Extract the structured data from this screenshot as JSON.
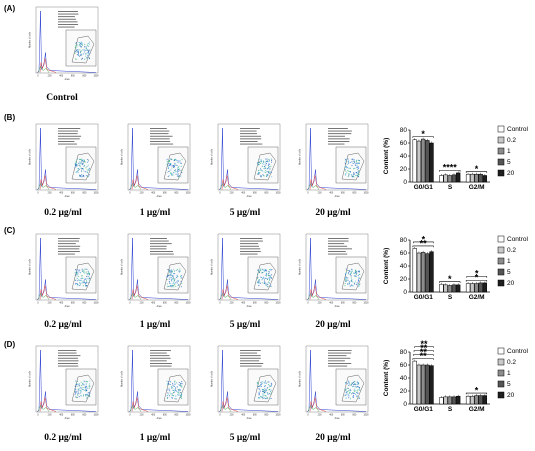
{
  "panels": [
    {
      "label": "(A)",
      "captions": [
        "Control"
      ]
    },
    {
      "label": "(B)",
      "captions": [
        "0.2 μg/ml",
        "1 μg/ml",
        "5 μg/ml",
        "20 μg/ml"
      ]
    },
    {
      "label": "(C)",
      "captions": [
        "0.2 μg/ml",
        "1 μg/ml",
        "5 μg/ml",
        "20 μg/ml"
      ]
    },
    {
      "label": "(D)",
      "captions": [
        "0.2 μg/ml",
        "1 μg/ml",
        "5 μg/ml",
        "20 μg/ml"
      ]
    }
  ],
  "flow_axes": {
    "x_label": "Area",
    "y_label": "Number of cells",
    "x_ticks": [
      "0",
      "200",
      "400",
      "600",
      "800",
      "1000"
    ]
  },
  "legend": [
    "Control",
    "0.2",
    "1",
    "5",
    "20"
  ],
  "bar_colors": [
    "#ffffff",
    "#c8c8c8",
    "#8c8c8c",
    "#555555",
    "#1e1e1e"
  ],
  "chart_data": [
    {
      "type": "bar",
      "ylabel": "Content (%)",
      "ylim": [
        0,
        80
      ],
      "yticks": [
        "0",
        "20",
        "40",
        "60",
        "80"
      ],
      "categories": [
        "G0/G1",
        "S",
        "G2/M"
      ],
      "series": [
        {
          "name": "Control",
          "values": [
            65,
            10,
            12
          ]
        },
        {
          "name": "0.2",
          "values": [
            63,
            11,
            12
          ]
        },
        {
          "name": "1",
          "values": [
            66,
            10,
            12
          ]
        },
        {
          "name": "5",
          "values": [
            64,
            11,
            12
          ]
        },
        {
          "name": "20",
          "values": [
            60,
            14,
            10
          ]
        }
      ],
      "significance": [
        {
          "group": "G0/G1",
          "label": "*"
        },
        {
          "group": "S",
          "label": "****"
        },
        {
          "group": "G2/M",
          "label": "*"
        }
      ]
    },
    {
      "type": "bar",
      "ylabel": "Content (%)",
      "ylim": [
        0,
        80
      ],
      "yticks": [
        "0",
        "20",
        "40",
        "60",
        "80"
      ],
      "categories": [
        "G0/G1",
        "S",
        "G2/M"
      ],
      "series": [
        {
          "name": "Control",
          "values": [
            67,
            12,
            13
          ]
        },
        {
          "name": "0.2",
          "values": [
            60,
            11,
            13
          ]
        },
        {
          "name": "1",
          "values": [
            61,
            10,
            13
          ]
        },
        {
          "name": "5",
          "values": [
            59,
            11,
            14
          ]
        },
        {
          "name": "20",
          "values": [
            62,
            11,
            14
          ]
        }
      ],
      "significance": [
        {
          "group": "G0/G1",
          "label": "**"
        },
        {
          "group": "G0/G1",
          "label": "*"
        },
        {
          "group": "S",
          "label": "*"
        },
        {
          "group": "G2/M",
          "label": "*"
        },
        {
          "group": "G2/M",
          "label": "*"
        }
      ]
    },
    {
      "type": "bar",
      "ylabel": "Content (%)",
      "ylim": [
        0,
        80
      ],
      "yticks": [
        "0",
        "20",
        "40",
        "60",
        "80"
      ],
      "categories": [
        "G0/G1",
        "S",
        "G2/M"
      ],
      "series": [
        {
          "name": "Control",
          "values": [
            66,
            10,
            12
          ]
        },
        {
          "name": "0.2",
          "values": [
            60,
            11,
            12
          ]
        },
        {
          "name": "1",
          "values": [
            60,
            11,
            13
          ]
        },
        {
          "name": "5",
          "values": [
            60,
            11,
            13
          ]
        },
        {
          "name": "20",
          "values": [
            59,
            12,
            13
          ]
        }
      ],
      "significance": [
        {
          "group": "G0/G1",
          "label": "**"
        },
        {
          "group": "G0/G1",
          "label": "**"
        },
        {
          "group": "G0/G1",
          "label": "**"
        },
        {
          "group": "G0/G1",
          "label": "**"
        },
        {
          "group": "G2/M",
          "label": "*"
        }
      ]
    }
  ]
}
